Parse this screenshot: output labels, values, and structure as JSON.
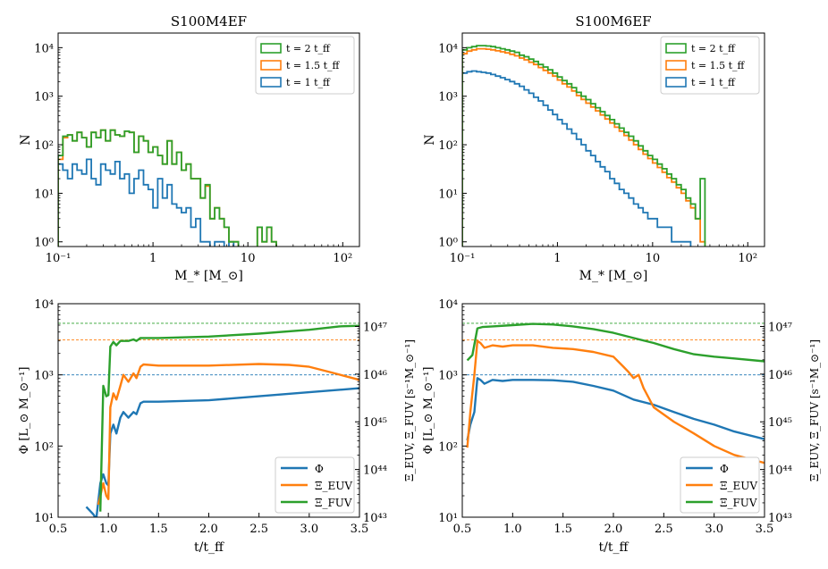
{
  "chart_data": [
    {
      "type": "histogram",
      "title": "S100M4EF",
      "xlabel": "M_* [M_⊙]",
      "ylabel": "N",
      "xscale": "log",
      "yscale": "log",
      "xlim": [
        0.1,
        150
      ],
      "ylim": [
        0.8,
        20000
      ],
      "xticks": [
        {
          "v": 0.1,
          "label": "10⁻¹"
        },
        {
          "v": 1,
          "label": "1"
        },
        {
          "v": 10,
          "label": "10"
        },
        {
          "v": 100,
          "label": "10²"
        }
      ],
      "yticks": [
        {
          "v": 1,
          "label": "10⁰"
        },
        {
          "v": 10,
          "label": "10¹"
        },
        {
          "v": 100,
          "label": "10²"
        },
        {
          "v": 1000,
          "label": "10³"
        },
        {
          "v": 10000,
          "label": "10⁴"
        }
      ],
      "legend": {
        "position": "top-right",
        "entries": [
          "t = 2 t_ff",
          "t = 1.5 t_ff",
          "t = 1 t_ff"
        ]
      },
      "bin_edges_log10": {
        "start": -1.0,
        "step": 0.05
      },
      "series": [
        {
          "name": "t = 2 t_ff",
          "color": "#2ca02c",
          "values": [
            60,
            150,
            160,
            120,
            180,
            140,
            90,
            180,
            140,
            200,
            120,
            200,
            160,
            150,
            190,
            180,
            70,
            150,
            120,
            70,
            90,
            60,
            40,
            120,
            40,
            70,
            30,
            40,
            20,
            20,
            8,
            15,
            3,
            5,
            3,
            2,
            1,
            1,
            0,
            0,
            0,
            0,
            2,
            1,
            2,
            1,
            0,
            0,
            0,
            0
          ]
        },
        {
          "name": "t = 1.5 t_ff",
          "color": "#ff7f0e",
          "values": [
            50,
            140,
            160,
            120,
            180,
            140,
            90,
            180,
            140,
            200,
            120,
            200,
            160,
            150,
            190,
            180,
            70,
            150,
            120,
            70,
            90,
            60,
            40,
            120,
            40,
            70,
            30,
            40,
            20,
            20,
            8,
            14,
            3,
            5,
            3,
            2,
            1,
            1,
            0,
            0,
            0,
            0,
            2,
            1,
            2,
            1,
            0,
            0,
            0,
            0
          ]
        },
        {
          "name": "t = 1 t_ff",
          "color": "#1f77b4",
          "values": [
            40,
            30,
            20,
            40,
            30,
            25,
            50,
            20,
            15,
            40,
            30,
            25,
            45,
            20,
            25,
            10,
            20,
            30,
            15,
            12,
            5,
            20,
            8,
            15,
            6,
            5,
            4,
            5,
            2,
            3,
            1,
            1,
            0,
            1,
            1,
            0,
            1,
            0,
            0,
            0,
            0,
            0,
            0,
            0,
            0,
            0,
            0,
            0,
            0,
            0
          ]
        }
      ]
    },
    {
      "type": "histogram",
      "title": "S100M6EF",
      "xlabel": "M_* [M_⊙]",
      "ylabel": "N",
      "xscale": "log",
      "yscale": "log",
      "xlim": [
        0.1,
        150
      ],
      "ylim": [
        0.8,
        20000
      ],
      "xticks": [
        {
          "v": 0.1,
          "label": "10⁻¹"
        },
        {
          "v": 1,
          "label": "1"
        },
        {
          "v": 10,
          "label": "10"
        },
        {
          "v": 100,
          "label": "10²"
        }
      ],
      "yticks": [
        {
          "v": 1,
          "label": "10⁰"
        },
        {
          "v": 10,
          "label": "10¹"
        },
        {
          "v": 100,
          "label": "10²"
        },
        {
          "v": 1000,
          "label": "10³"
        },
        {
          "v": 10000,
          "label": "10⁴"
        }
      ],
      "legend": {
        "position": "top-right",
        "entries": [
          "t = 2 t_ff",
          "t = 1.5 t_ff",
          "t = 1 t_ff"
        ]
      },
      "bin_edges_log10": {
        "start": -1.0,
        "step": 0.05
      },
      "series": [
        {
          "name": "t = 2 t_ff",
          "color": "#2ca02c",
          "values": [
            9000,
            10000,
            10500,
            11000,
            11000,
            10800,
            10500,
            10000,
            9500,
            9000,
            8500,
            8000,
            7000,
            6500,
            5800,
            5200,
            4500,
            4000,
            3500,
            3000,
            2500,
            2100,
            1800,
            1500,
            1200,
            1000,
            850,
            700,
            580,
            480,
            400,
            330,
            270,
            220,
            180,
            150,
            120,
            95,
            75,
            60,
            50,
            40,
            32,
            25,
            20,
            15,
            12,
            8,
            6,
            3,
            20
          ]
        },
        {
          "name": "t = 1.5 t_ff",
          "color": "#ff7f0e",
          "values": [
            7500,
            8500,
            9000,
            9500,
            9500,
            9300,
            9000,
            8600,
            8200,
            7800,
            7300,
            6800,
            6100,
            5600,
            5000,
            4500,
            3900,
            3400,
            3000,
            2600,
            2150,
            1800,
            1550,
            1280,
            1030,
            860,
            720,
            600,
            500,
            410,
            340,
            280,
            230,
            190,
            155,
            125,
            100,
            80,
            64,
            52,
            42,
            34,
            27,
            21,
            17,
            13,
            10,
            7,
            5,
            3,
            1
          ]
        },
        {
          "name": "t = 1 t_ff",
          "color": "#1f77b4",
          "values": [
            3000,
            3200,
            3300,
            3200,
            3100,
            3000,
            2800,
            2600,
            2400,
            2200,
            2000,
            1800,
            1600,
            1350,
            1150,
            950,
            800,
            650,
            520,
            420,
            330,
            270,
            210,
            170,
            130,
            100,
            75,
            60,
            45,
            35,
            28,
            20,
            16,
            12,
            10,
            8,
            6,
            5,
            4,
            3,
            3,
            2,
            2,
            2,
            1,
            1,
            1,
            1,
            0,
            0,
            0
          ]
        }
      ]
    },
    {
      "type": "line",
      "xlabel": "t/t_ff",
      "ylabel": "Φ [L_⊙ M_⊙⁻¹]",
      "ylabel_right": "Ξ_EUV, Ξ_FUV [s⁻¹M_⊙⁻¹]",
      "xlim": [
        0.5,
        3.5
      ],
      "ylim": [
        10,
        10000
      ],
      "yscale": "log",
      "ylim_right": [
        1e+43,
        3e+47
      ],
      "yscale_right": "log",
      "xticks": [
        0.5,
        1.0,
        1.5,
        2.0,
        2.5,
        3.0,
        3.5
      ],
      "xtick_labels": [
        "0.5",
        "1.0",
        "1.5",
        "2.0",
        "2.5",
        "3.0",
        "3.5"
      ],
      "yticks": [
        {
          "v": 10,
          "label": "10¹"
        },
        {
          "v": 100,
          "label": "10²"
        },
        {
          "v": 1000,
          "label": "10³"
        },
        {
          "v": 10000,
          "label": "10⁴"
        }
      ],
      "yticks_right": [
        {
          "v": 1e+43,
          "label": "10⁴³"
        },
        {
          "v": 1e+44,
          "label": "10⁴⁴"
        },
        {
          "v": 1e+45,
          "label": "10⁴⁵"
        },
        {
          "v": 1e+46,
          "label": "10⁴⁶"
        },
        {
          "v": 1e+47,
          "label": "10⁴⁷"
        }
      ],
      "legend": {
        "position": "bottom-right",
        "entries": [
          "Φ",
          "Ξ_EUV",
          "Ξ_FUV"
        ]
      },
      "hlines": [
        {
          "value": 5300,
          "color": "#2ca02c"
        },
        {
          "value": 3100,
          "color": "#ff7f0e"
        },
        {
          "value": 1000,
          "color": "#1f77b4"
        }
      ],
      "series": [
        {
          "name": "Φ",
          "color": "#1f77b4",
          "x": [
            0.78,
            0.85,
            0.88,
            0.92,
            0.95,
            0.98,
            1.0,
            1.02,
            1.05,
            1.08,
            1.12,
            1.15,
            1.2,
            1.25,
            1.28,
            1.32,
            1.35,
            1.5,
            2.0,
            2.5,
            3.0,
            3.5
          ],
          "y": [
            14,
            11,
            9.5,
            30,
            40,
            30,
            28,
            150,
            200,
            150,
            250,
            300,
            250,
            300,
            280,
            400,
            420,
            420,
            440,
            500,
            570,
            650
          ]
        },
        {
          "name": "Ξ_EUV",
          "color": "#ff7f0e",
          "x": [
            0.9,
            0.95,
            0.98,
            1.0,
            1.02,
            1.05,
            1.08,
            1.12,
            1.15,
            1.2,
            1.25,
            1.28,
            1.32,
            1.35,
            1.5,
            2.0,
            2.5,
            2.8,
            3.0,
            3.2,
            3.5
          ],
          "y": [
            15,
            30,
            20,
            18,
            350,
            550,
            450,
            700,
            1000,
            800,
            1050,
            900,
            1300,
            1400,
            1350,
            1350,
            1420,
            1380,
            1300,
            1100,
            850
          ]
        },
        {
          "name": "Ξ_FUV",
          "color": "#2ca02c",
          "x": [
            0.92,
            0.95,
            0.98,
            1.0,
            1.02,
            1.05,
            1.08,
            1.12,
            1.15,
            1.2,
            1.25,
            1.28,
            1.32,
            1.35,
            1.5,
            2.0,
            2.5,
            3.0,
            3.3,
            3.5
          ],
          "y": [
            12,
            700,
            500,
            520,
            2500,
            2900,
            2600,
            3000,
            3000,
            3000,
            3150,
            3000,
            3300,
            3300,
            3300,
            3450,
            3800,
            4300,
            4800,
            4900
          ]
        }
      ]
    },
    {
      "type": "line",
      "xlabel": "t/t_ff",
      "ylabel": "Φ [L_⊙ M_⊙⁻¹]",
      "ylabel_right": "Ξ_EUV, Ξ_FUV [s⁻¹M_⊙⁻¹]",
      "xlim": [
        0.5,
        3.5
      ],
      "ylim": [
        10,
        10000
      ],
      "yscale": "log",
      "ylim_right": [
        1e+43,
        3e+47
      ],
      "yscale_right": "log",
      "xticks": [
        0.5,
        1.0,
        1.5,
        2.0,
        2.5,
        3.0,
        3.5
      ],
      "xtick_labels": [
        "0.5",
        "1.0",
        "1.5",
        "2.0",
        "2.5",
        "3.0",
        "3.5"
      ],
      "yticks": [
        {
          "v": 10,
          "label": "10¹"
        },
        {
          "v": 100,
          "label": "10²"
        },
        {
          "v": 1000,
          "label": "10³"
        },
        {
          "v": 10000,
          "label": "10⁴"
        }
      ],
      "yticks_right": [
        {
          "v": 1e+43,
          "label": "10⁴³"
        },
        {
          "v": 1e+44,
          "label": "10⁴⁴"
        },
        {
          "v": 1e+45,
          "label": "10⁴⁵"
        },
        {
          "v": 1e+46,
          "label": "10⁴⁶"
        },
        {
          "v": 1e+47,
          "label": "10⁴⁷"
        }
      ],
      "legend": {
        "position": "bottom-right",
        "entries": [
          "Φ",
          "Ξ_EUV",
          "Ξ_FUV"
        ]
      },
      "hlines": [
        {
          "value": 5300,
          "color": "#2ca02c"
        },
        {
          "value": 3100,
          "color": "#ff7f0e"
        },
        {
          "value": 1000,
          "color": "#1f77b4"
        }
      ],
      "series": [
        {
          "name": "Φ",
          "color": "#1f77b4",
          "x": [
            0.55,
            0.58,
            0.62,
            0.65,
            0.68,
            0.72,
            0.8,
            0.9,
            1.0,
            1.2,
            1.4,
            1.6,
            1.8,
            2.0,
            2.2,
            2.4,
            2.6,
            2.8,
            3.0,
            3.2,
            3.5
          ],
          "y": [
            120,
            200,
            300,
            900,
            850,
            750,
            850,
            820,
            850,
            850,
            840,
            800,
            700,
            600,
            450,
            380,
            300,
            240,
            200,
            160,
            125
          ]
        },
        {
          "name": "Ξ_EUV",
          "color": "#ff7f0e",
          "x": [
            0.55,
            0.58,
            0.62,
            0.65,
            0.68,
            0.72,
            0.8,
            0.9,
            1.0,
            1.2,
            1.4,
            1.6,
            1.8,
            2.0,
            2.1,
            2.15,
            2.2,
            2.25,
            2.3,
            2.4,
            2.6,
            2.8,
            3.0,
            3.2,
            3.5
          ],
          "y": [
            95,
            300,
            1000,
            3000,
            2800,
            2400,
            2600,
            2500,
            2600,
            2600,
            2400,
            2300,
            2100,
            1800,
            1300,
            1100,
            900,
            1000,
            650,
            350,
            220,
            150,
            100,
            75,
            58
          ]
        },
        {
          "name": "Ξ_FUV",
          "color": "#2ca02c",
          "x": [
            0.55,
            0.6,
            0.65,
            0.7,
            0.8,
            1.0,
            1.2,
            1.4,
            1.6,
            1.8,
            2.0,
            2.2,
            2.4,
            2.6,
            2.8,
            3.0,
            3.2,
            3.5
          ],
          "y": [
            1600,
            1900,
            4500,
            4700,
            4800,
            5000,
            5200,
            5100,
            4800,
            4400,
            3900,
            3300,
            2800,
            2300,
            1950,
            1800,
            1700,
            1550
          ]
        }
      ]
    }
  ]
}
